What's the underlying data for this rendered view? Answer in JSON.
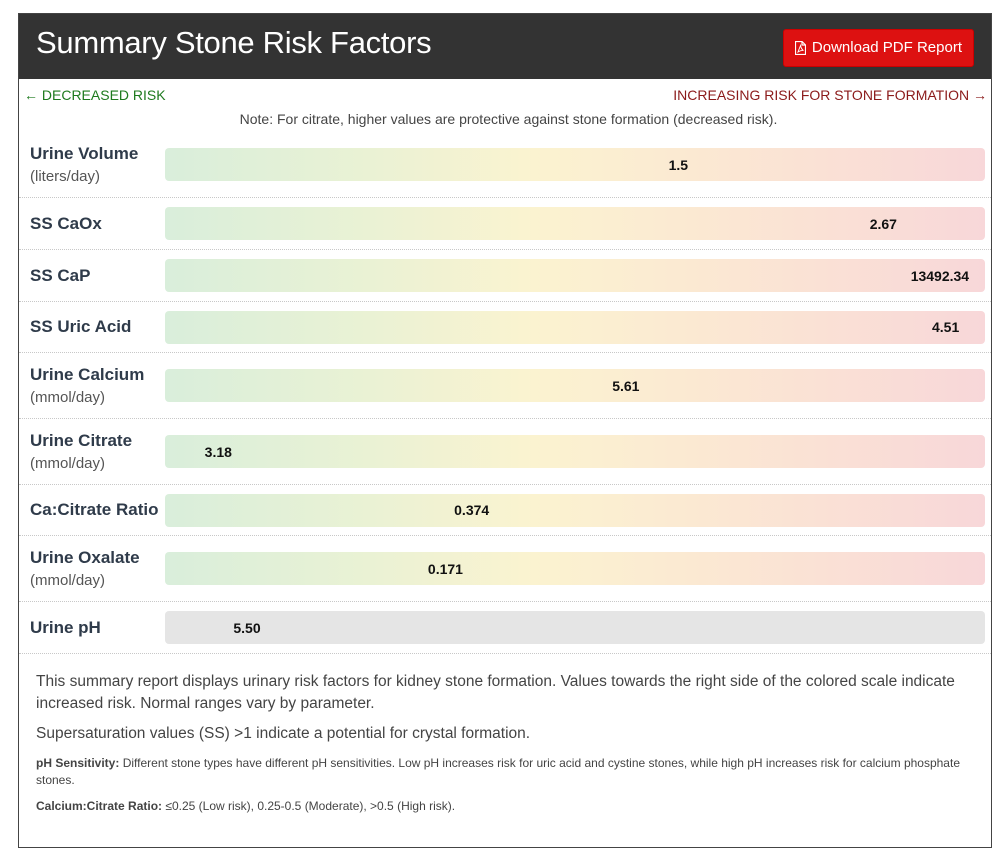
{
  "header": {
    "title": "Summary Stone Risk Factors",
    "download_label": "Download PDF Report"
  },
  "legend": {
    "decreased": "← DECREASED RISK",
    "increasing": "INCREASING RISK FOR STONE FORMATION →"
  },
  "note": "Note: For citrate, higher values are protective against stone formation (decreased risk).",
  "factors": [
    {
      "name": "Urine Volume",
      "unit": "(liters/day)",
      "value": "1.5",
      "position": 0.626
    },
    {
      "name": "SS CaOx",
      "unit": "",
      "value": "2.67",
      "position": 0.876
    },
    {
      "name": "SS CaP",
      "unit": "",
      "value": "13492.34",
      "position": 0.945
    },
    {
      "name": "SS Uric Acid",
      "unit": "",
      "value": "4.51",
      "position": 0.952
    },
    {
      "name": "Urine Calcium",
      "unit": "(mmol/day)",
      "value": "5.61",
      "position": 0.562
    },
    {
      "name": "Urine Citrate",
      "unit": "(mmol/day)",
      "value": "3.18",
      "position": 0.065
    },
    {
      "name": "Ca:Citrate Ratio",
      "unit": "",
      "value": "0.374",
      "position": 0.374
    },
    {
      "name": "Urine Oxalate",
      "unit": "(mmol/day)",
      "value": "0.171",
      "position": 0.342
    },
    {
      "name": "Urine pH",
      "unit": "",
      "value": "5.50",
      "position": 0.1
    }
  ],
  "footer": {
    "summary": "This summary report displays urinary risk factors for kidney stone formation. Values towards the right side of the colored scale indicate increased risk. Normal ranges vary by parameter.",
    "ss_note": "Supersaturation values (SS) >1 indicate a potential for crystal formation.",
    "ph_title": "pH Sensitivity:",
    "ph_text": "Different stone types have different pH sensitivities. Low pH increases risk for uric acid and cystine stones, while high pH increases risk for calcium phosphate stones.",
    "ratio_title": "Calcium:Citrate Ratio:",
    "ratio_text": "≤0.25 (Low risk), 0.25-0.5 (Moderate), >0.5 (High risk)."
  },
  "colors": {
    "header_bg": "#333333",
    "button_bg": "#dd1111",
    "decreased": "#1e7a1e",
    "increasing": "#8b1a1a"
  }
}
